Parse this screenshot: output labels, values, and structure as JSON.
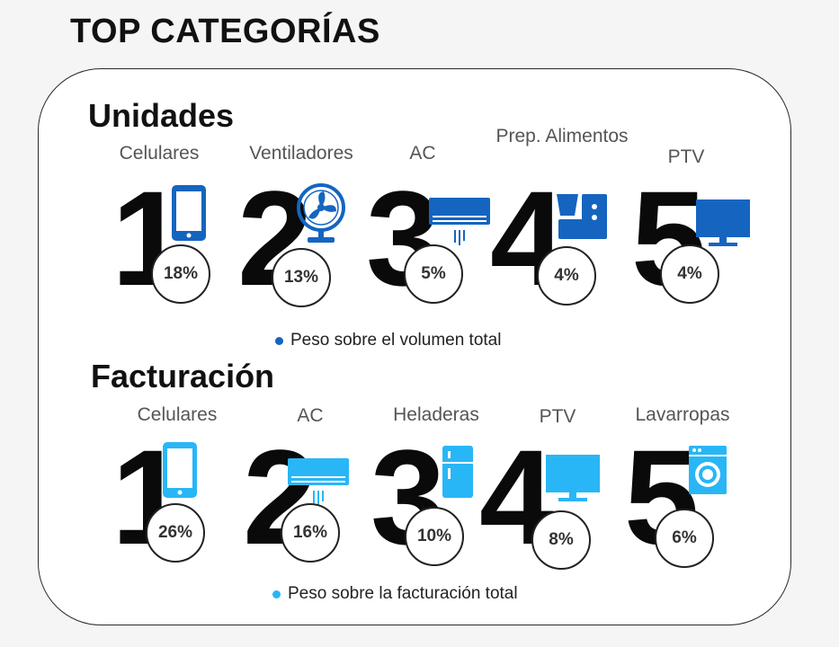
{
  "title": "TOP CATEGORÍAS",
  "colors": {
    "unidades_icon": "#1565c0",
    "facturacion_icon": "#29b6f6"
  },
  "unidades": {
    "heading": "Unidades",
    "legend": "Peso sobre el volumen total",
    "items": [
      {
        "rank": "1",
        "label": "Celulares",
        "share": "18%",
        "icon": "phone-icon"
      },
      {
        "rank": "2",
        "label": "Ventiladores",
        "share": "13%",
        "icon": "fan-icon"
      },
      {
        "rank": "3",
        "label": "AC",
        "share": "5%",
        "icon": "air-conditioner-icon"
      },
      {
        "rank": "4",
        "label": "Prep. Alimentos",
        "share": "4%",
        "icon": "food-processor-icon"
      },
      {
        "rank": "5",
        "label": "PTV",
        "share": "4%",
        "icon": "tv-icon"
      }
    ]
  },
  "facturacion": {
    "heading": "Facturación",
    "legend": "Peso sobre la facturación total",
    "items": [
      {
        "rank": "1",
        "label": "Celulares",
        "share": "26%",
        "icon": "phone-icon"
      },
      {
        "rank": "2",
        "label": "AC",
        "share": "16%",
        "icon": "air-conditioner-icon"
      },
      {
        "rank": "3",
        "label": "Heladeras",
        "share": "10%",
        "icon": "fridge-icon"
      },
      {
        "rank": "4",
        "label": "PTV",
        "share": "8%",
        "icon": "tv-icon"
      },
      {
        "rank": "5",
        "label": "Lavarropas",
        "share": "6%",
        "icon": "washing-machine-icon"
      }
    ]
  }
}
